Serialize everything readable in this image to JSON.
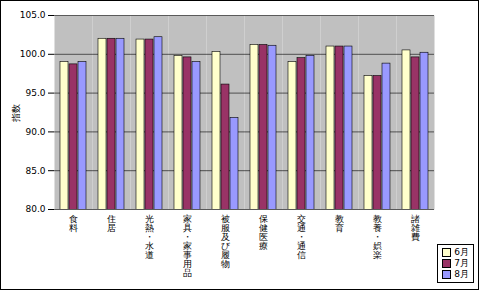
{
  "chart_data": {
    "type": "bar",
    "y_label": "指数",
    "categories": [
      "食料",
      "住居",
      "光熱・水道",
      "家具・家事用品",
      "被服及び履物",
      "保健医療",
      "交通・通信",
      "教育",
      "教養・娯楽",
      "諸雑費"
    ],
    "series": [
      {
        "name": "6月",
        "color": "#ffffcc",
        "values": [
          99.0,
          102.0,
          101.9,
          99.8,
          100.3,
          101.2,
          99.0,
          101.0,
          97.2,
          100.5
        ]
      },
      {
        "name": "7月",
        "color": "#993366",
        "values": [
          98.7,
          102.0,
          101.9,
          99.6,
          96.1,
          101.2,
          99.5,
          101.0,
          97.2,
          99.6
        ]
      },
      {
        "name": "8月",
        "color": "#9999ff",
        "values": [
          99.0,
          102.0,
          102.2,
          99.0,
          91.8,
          101.1,
          99.8,
          101.0,
          98.8,
          100.2
        ]
      }
    ],
    "ylim": [
      80,
      105
    ],
    "yticks": [
      {
        "value": 80,
        "label": "80.0"
      },
      {
        "value": 85,
        "label": "85.0"
      },
      {
        "value": 90,
        "label": "90.0"
      },
      {
        "value": 95,
        "label": "95.0"
      },
      {
        "value": 100,
        "label": "100.0"
      },
      {
        "value": 105,
        "label": "105.0"
      }
    ],
    "grid": true,
    "legend": "bottom-right"
  }
}
